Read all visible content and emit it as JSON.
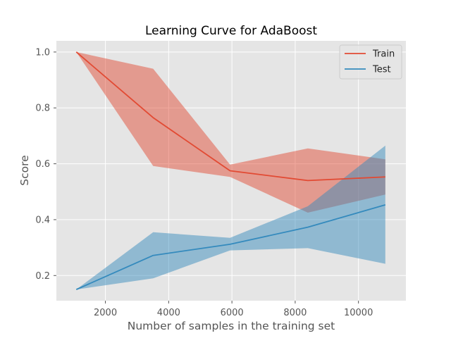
{
  "chart_data": {
    "type": "line",
    "title": "Learning Curve for AdaBoost",
    "xlabel": "Number of samples in the training set",
    "ylabel": "Score",
    "xlim": [
      450,
      11500
    ],
    "ylim": [
      0.11,
      1.04
    ],
    "xticks": [
      2000,
      4000,
      6000,
      8000,
      10000
    ],
    "xtick_labels": [
      "2000",
      "4000",
      "6000",
      "8000",
      "10000"
    ],
    "yticks": [
      0.2,
      0.4,
      0.6,
      0.8,
      1.0
    ],
    "ytick_labels": [
      "0.2",
      "0.4",
      "0.6",
      "0.8",
      "1.0"
    ],
    "grid": true,
    "legend_position": "top-right",
    "x": [
      1080,
      3510,
      5940,
      8400,
      10850
    ],
    "series": [
      {
        "name": "Train",
        "color": "#E24A33",
        "values": [
          1.0,
          0.765,
          0.575,
          0.54,
          0.553
        ],
        "band_upper": [
          1.0,
          0.94,
          0.597,
          0.655,
          0.616
        ],
        "band_lower": [
          1.0,
          0.592,
          0.553,
          0.425,
          0.49
        ]
      },
      {
        "name": "Test",
        "color": "#348ABD",
        "values": [
          0.15,
          0.272,
          0.312,
          0.373,
          0.453
        ],
        "band_upper": [
          0.15,
          0.355,
          0.335,
          0.448,
          0.665
        ],
        "band_lower": [
          0.15,
          0.19,
          0.29,
          0.298,
          0.242
        ]
      }
    ]
  }
}
